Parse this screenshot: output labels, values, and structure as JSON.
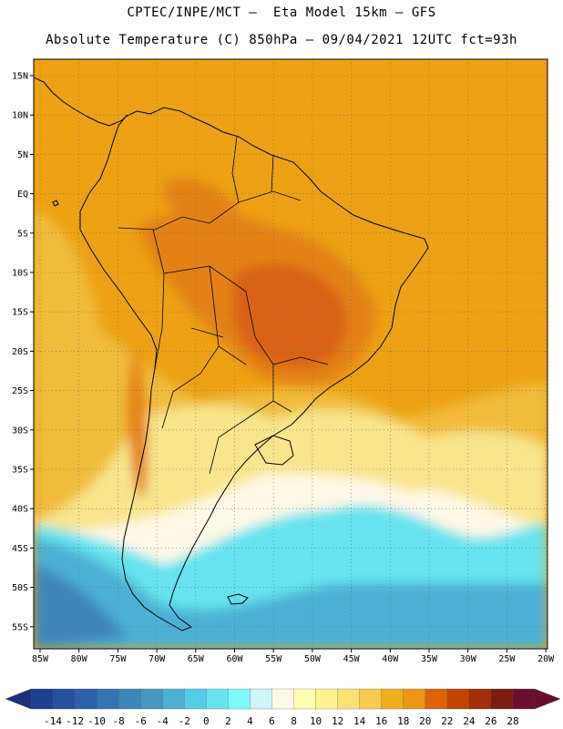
{
  "header": {
    "line1": "CPTEC/INPE/MCT –  Eta Model 15km – GFS",
    "line2": "Absolute Temperature (C) 850hPa – 09/04/2021 12UTC fct=93h"
  },
  "map": {
    "lat_labels": [
      "15N",
      "10N",
      "5N",
      "EQ",
      "5S",
      "10S",
      "15S",
      "20S",
      "25S",
      "30S",
      "35S",
      "40S",
      "45S",
      "50S",
      "55S"
    ],
    "lon_labels": [
      "85W",
      "80W",
      "75W",
      "70W",
      "65W",
      "60W",
      "55W",
      "50W",
      "45W",
      "40W",
      "35W",
      "30W",
      "25W",
      "20W"
    ]
  },
  "colorbar": {
    "labels": [
      "-14",
      "-12",
      "-10",
      "-8",
      "-6",
      "-4",
      "-2",
      "0",
      "2",
      "4",
      "6",
      "8",
      "10",
      "12",
      "14",
      "16",
      "18",
      "20",
      "22",
      "24",
      "26",
      "28"
    ],
    "colors": [
      "#1c3f8f",
      "#25509f",
      "#2c61ab",
      "#3573b3",
      "#3d86ba",
      "#4597c2",
      "#4bb0d4",
      "#55cbe6",
      "#66e3ee",
      "#7ef8fb",
      "#cdf5fa",
      "#fff8e6",
      "#fefdb0",
      "#fff38f",
      "#fbe173",
      "#f5ca4d",
      "#f0ae1e",
      "#eb9614",
      "#de6306",
      "#c24400",
      "#a02e07",
      "#7d1c10",
      "#6a0f2e"
    ],
    "under_color": "#1f2e7a",
    "over_color": "#6a0b2a"
  },
  "palette": {
    "ocean_warm": "#eca214",
    "ocean_mid": "#f0bc3a",
    "mild": "#f8e58c",
    "cool": "#fff8e6",
    "cold_1": "#66e3ee",
    "cold_2": "#4bb0d4",
    "cold_3": "#3d86ba",
    "hot_1": "#e38119",
    "hot_2": "#d96214",
    "coast": "#000000",
    "grid": "#6b6b6b"
  }
}
